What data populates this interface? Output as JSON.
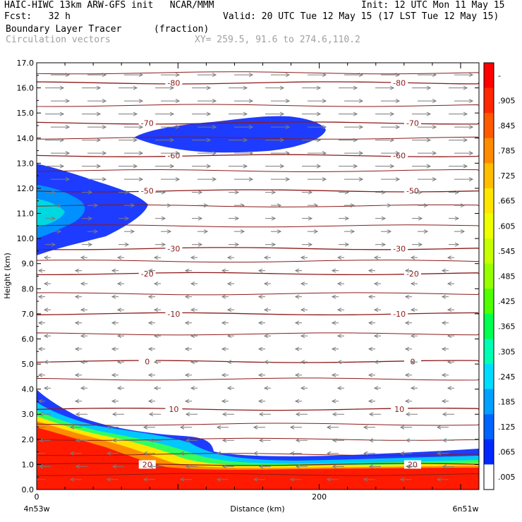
{
  "header": {
    "left1": "HAIC-HIWC 13km ARW-GFS init   NCAR/MMM",
    "right1": "Init: 12 UTC Mon 11 May 15",
    "left2": "Fcst:   32 h",
    "right2": "Valid: 20 UTC Tue 12 May 15 (17 LST Tue 12 May 15)",
    "field1": "Boundary Layer Tracer",
    "field1_units": "(fraction)",
    "field2": "Circulation vectors",
    "xy_info": "XY= 259.5, 91.6 to 274.6,110.2"
  },
  "chart_data": {
    "type": "heatmap",
    "title": "Boundary Layer Tracer",
    "xlabel": "Distance (km)",
    "ylabel": "Height (km)",
    "xlim": [
      0,
      313
    ],
    "ylim": [
      0,
      17
    ],
    "x_ticks": [
      {
        "value": 0,
        "label": "0"
      },
      {
        "value": 200,
        "label": "200"
      }
    ],
    "x_end_labels": {
      "left": "4n53w",
      "right": "6n51w"
    },
    "y_ticks": [
      "0.0",
      "1.0",
      "2.0",
      "3.0",
      "4.0",
      "5.0",
      "6.0",
      "7.0",
      "8.0",
      "9.0",
      "10.0",
      "11.0",
      "12.0",
      "13.0",
      "14.0",
      "15.0",
      "16.0",
      "17.0"
    ],
    "colorbar": {
      "labels": [
        "-",
        ".905",
        ".845",
        ".785",
        ".725",
        ".665",
        ".605",
        ".545",
        ".485",
        ".425",
        ".365",
        ".305",
        ".245",
        ".185",
        ".125",
        ".065",
        ".005"
      ],
      "colors": [
        "#ff0000",
        "#ff2800",
        "#ff5a00",
        "#ff8c00",
        "#ffbe00",
        "#ffe600",
        "#f0ff00",
        "#c8ff00",
        "#96ff00",
        "#50ff00",
        "#00ff50",
        "#00ffb4",
        "#00dcff",
        "#00a0ff",
        "#0064ff",
        "#0028ff",
        "#ffffff"
      ]
    },
    "temperature_contours": [
      {
        "label": "-80",
        "height": 16.2
      },
      {
        "label": "-70",
        "height": 14.6
      },
      {
        "label": "-60",
        "height": 13.3
      },
      {
        "label": "-50",
        "height": 11.9
      },
      {
        "label": "-30",
        "height": 9.6
      },
      {
        "label": "-20",
        "height": 8.6
      },
      {
        "label": "-10",
        "height": 7.0
      },
      {
        "label": "0",
        "height": 5.1
      },
      {
        "label": "10",
        "height": 3.2
      },
      {
        "label": "20",
        "height": 1.0
      }
    ],
    "unlabeled_contour_heights": [
      16.6,
      15.3,
      14.0,
      12.7,
      11.3,
      10.5,
      9.1,
      7.8,
      6.2,
      4.4,
      2.6,
      2.0,
      1.4,
      0.6
    ]
  }
}
